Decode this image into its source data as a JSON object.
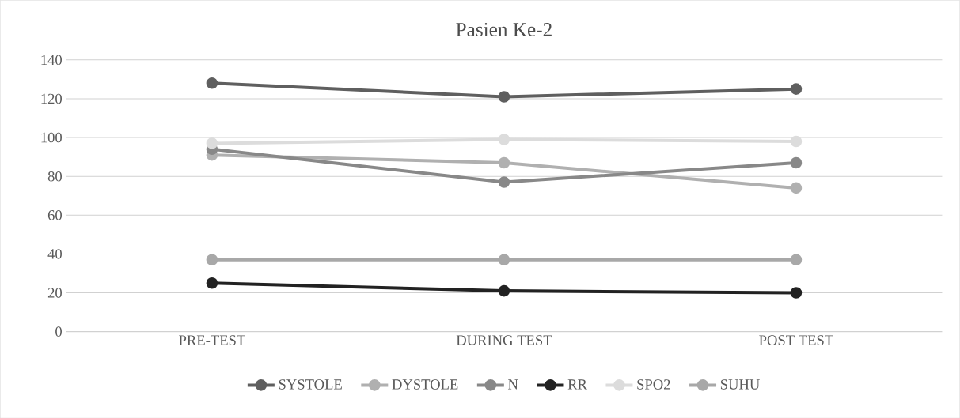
{
  "chart_data": {
    "type": "line",
    "title": "Pasien Ke-2",
    "categories": [
      "PRE-TEST",
      "DURING TEST",
      "POST TEST"
    ],
    "series": [
      {
        "name": "SYSTOLE",
        "color": "#5f5f5f",
        "values": [
          128,
          121,
          125
        ]
      },
      {
        "name": "DYSTOLE",
        "color": "#b0b0b0",
        "values": [
          91,
          87,
          74
        ]
      },
      {
        "name": "N",
        "color": "#888888",
        "values": [
          94,
          77,
          87
        ]
      },
      {
        "name": "RR",
        "color": "#222222",
        "values": [
          25,
          21,
          20
        ]
      },
      {
        "name": "SPO2",
        "color": "#dcdcdc",
        "values": [
          97,
          99,
          98
        ]
      },
      {
        "name": "SUHU",
        "color": "#a8a8a8",
        "values": [
          37,
          37,
          37
        ]
      }
    ],
    "ylim": [
      0,
      140
    ],
    "yticks": [
      0,
      20,
      40,
      60,
      80,
      100,
      120,
      140
    ],
    "grid": "y",
    "legend": "bottom",
    "marker": "circle",
    "line_style": "solid"
  }
}
